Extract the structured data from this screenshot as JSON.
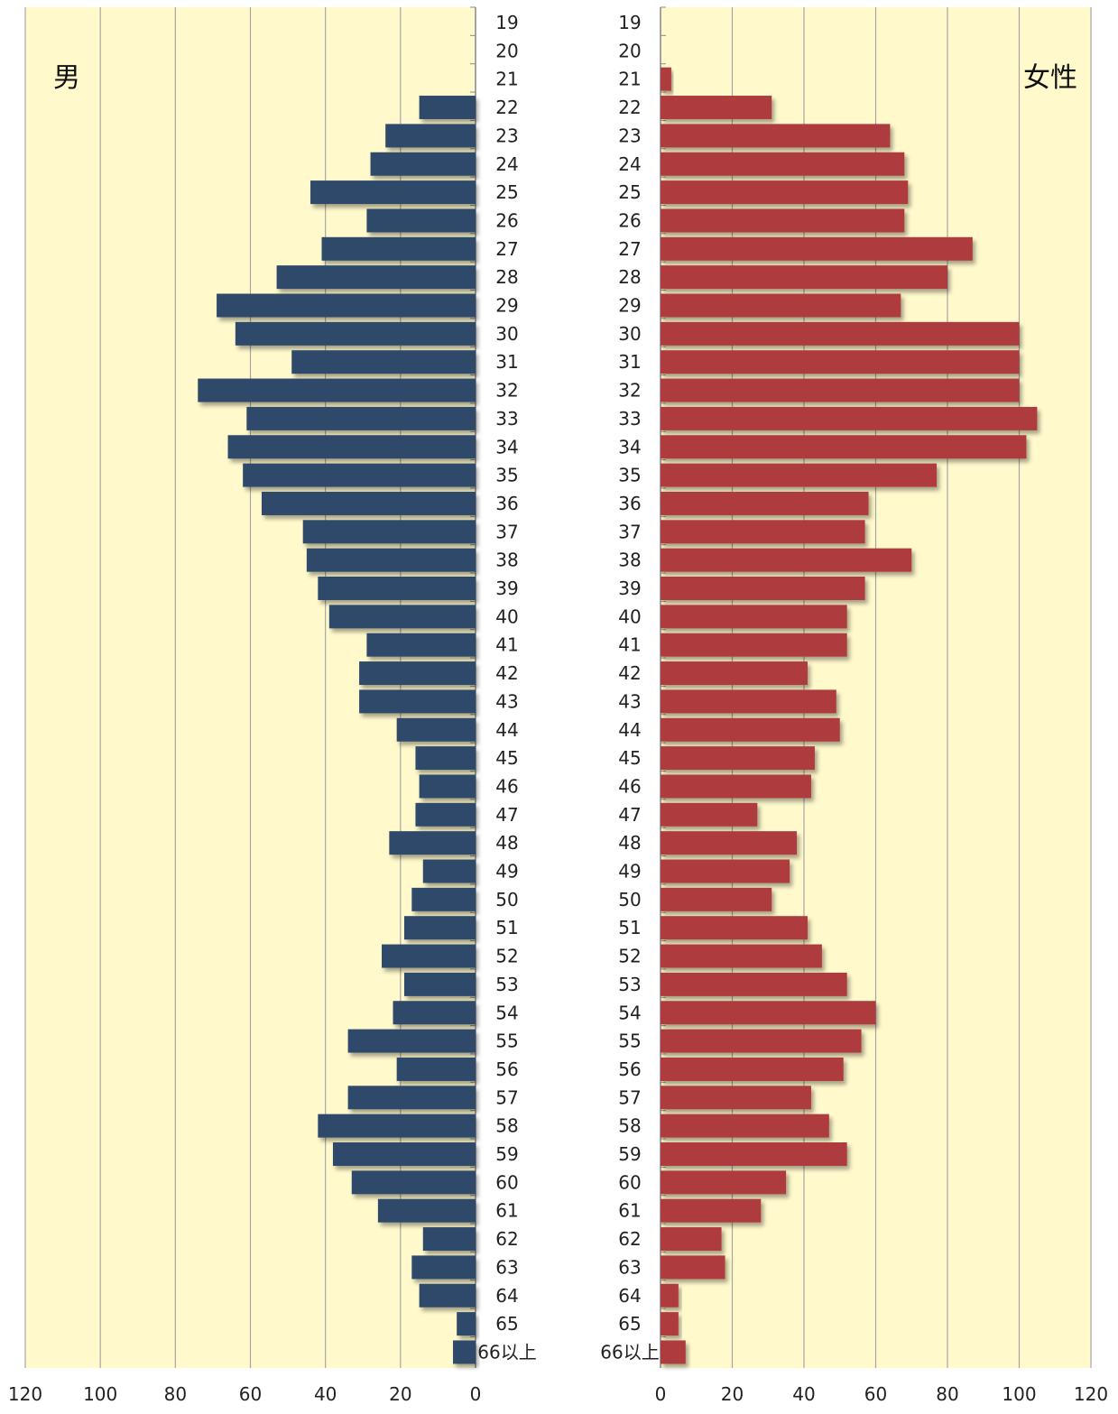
{
  "chart_data": [
    {
      "type": "bar",
      "orientation": "horizontal",
      "direction": "reversed",
      "title": "男",
      "color": "#2f4a6b",
      "background": "#fff9cc",
      "gridlines": true,
      "xlim": [
        0,
        120
      ],
      "xticks": [
        "120",
        "100",
        "80",
        "60",
        "40",
        "20",
        "0"
      ],
      "categories": [
        "19",
        "20",
        "21",
        "22",
        "23",
        "24",
        "25",
        "26",
        "27",
        "28",
        "29",
        "30",
        "31",
        "32",
        "33",
        "34",
        "35",
        "36",
        "37",
        "38",
        "39",
        "40",
        "41",
        "42",
        "43",
        "44",
        "45",
        "46",
        "47",
        "48",
        "49",
        "50",
        "51",
        "52",
        "53",
        "54",
        "55",
        "56",
        "57",
        "58",
        "59",
        "60",
        "61",
        "62",
        "63",
        "64",
        "65",
        "66以上"
      ],
      "values": [
        0,
        0,
        0,
        15,
        24,
        28,
        44,
        29,
        41,
        53,
        69,
        64,
        49,
        74,
        61,
        66,
        62,
        57,
        46,
        45,
        42,
        39,
        29,
        31,
        31,
        21,
        16,
        15,
        16,
        23,
        14,
        17,
        19,
        25,
        19,
        22,
        34,
        21,
        34,
        42,
        38,
        33,
        26,
        14,
        17,
        15,
        5,
        6
      ]
    },
    {
      "type": "bar",
      "orientation": "horizontal",
      "direction": "normal",
      "title": "女性",
      "color": "#ae3b3c",
      "background": "#fff9cc",
      "gridlines": true,
      "xlim": [
        0,
        120
      ],
      "xticks": [
        "0",
        "20",
        "40",
        "60",
        "80",
        "100",
        "120"
      ],
      "categories": [
        "19",
        "20",
        "21",
        "22",
        "23",
        "24",
        "25",
        "26",
        "27",
        "28",
        "29",
        "30",
        "31",
        "32",
        "33",
        "34",
        "35",
        "36",
        "37",
        "38",
        "39",
        "40",
        "41",
        "42",
        "43",
        "44",
        "45",
        "46",
        "47",
        "48",
        "49",
        "50",
        "51",
        "52",
        "53",
        "54",
        "55",
        "56",
        "57",
        "58",
        "59",
        "60",
        "61",
        "62",
        "63",
        "64",
        "65",
        "66以上"
      ],
      "values": [
        0,
        0,
        3,
        31,
        64,
        68,
        69,
        68,
        87,
        80,
        67,
        100,
        100,
        100,
        105,
        102,
        77,
        58,
        57,
        70,
        57,
        52,
        52,
        41,
        49,
        50,
        43,
        42,
        27,
        38,
        36,
        31,
        41,
        45,
        52,
        60,
        56,
        51,
        42,
        47,
        52,
        35,
        28,
        17,
        18,
        5,
        5,
        7
      ]
    }
  ]
}
